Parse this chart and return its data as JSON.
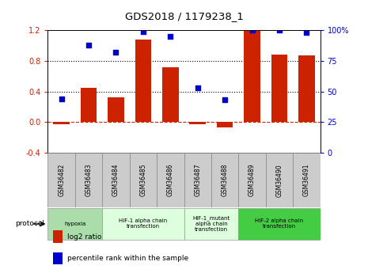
{
  "title": "GDS2018 / 1179238_1",
  "samples": [
    "GSM36482",
    "GSM36483",
    "GSM36484",
    "GSM36485",
    "GSM36486",
    "GSM36487",
    "GSM36488",
    "GSM36489",
    "GSM36490",
    "GSM36491"
  ],
  "log2_ratio": [
    -0.03,
    0.45,
    0.32,
    1.08,
    0.72,
    -0.03,
    -0.07,
    1.2,
    0.88,
    0.87
  ],
  "percentile_rank": [
    44,
    88,
    82,
    99,
    95,
    53,
    43,
    100,
    100,
    98
  ],
  "ylim_left": [
    -0.4,
    1.2
  ],
  "ylim_right": [
    0,
    100
  ],
  "yticks_left": [
    -0.4,
    0.0,
    0.4,
    0.8,
    1.2
  ],
  "yticks_right": [
    0,
    25,
    50,
    75,
    100
  ],
  "ytick_labels_right": [
    "0",
    "25",
    "50",
    "75",
    "100%"
  ],
  "bar_color": "#cc2200",
  "dot_color": "#0000cc",
  "zero_line_color": "#cc2200",
  "grid_color": "black",
  "bg_color": "white",
  "protocols": [
    {
      "label": "hypoxia",
      "start": 0,
      "end": 2,
      "color": "#aaddaa"
    },
    {
      "label": "HIF-1 alpha chain\ntransfection",
      "start": 2,
      "end": 5,
      "color": "#ddffdd"
    },
    {
      "label": "HIF-1_mutant\nalpha chain\ntransfection",
      "start": 5,
      "end": 7,
      "color": "#ddffdd"
    },
    {
      "label": "HIF-2 alpha chain\ntransfection",
      "start": 7,
      "end": 10,
      "color": "#44cc44"
    }
  ],
  "protocol_label": "protocol",
  "legend_items": [
    {
      "color": "#cc2200",
      "label": "log2 ratio"
    },
    {
      "color": "#0000cc",
      "label": "percentile rank within the sample"
    }
  ],
  "sample_box_color": "#cccccc",
  "sample_box_edge": "#888888"
}
